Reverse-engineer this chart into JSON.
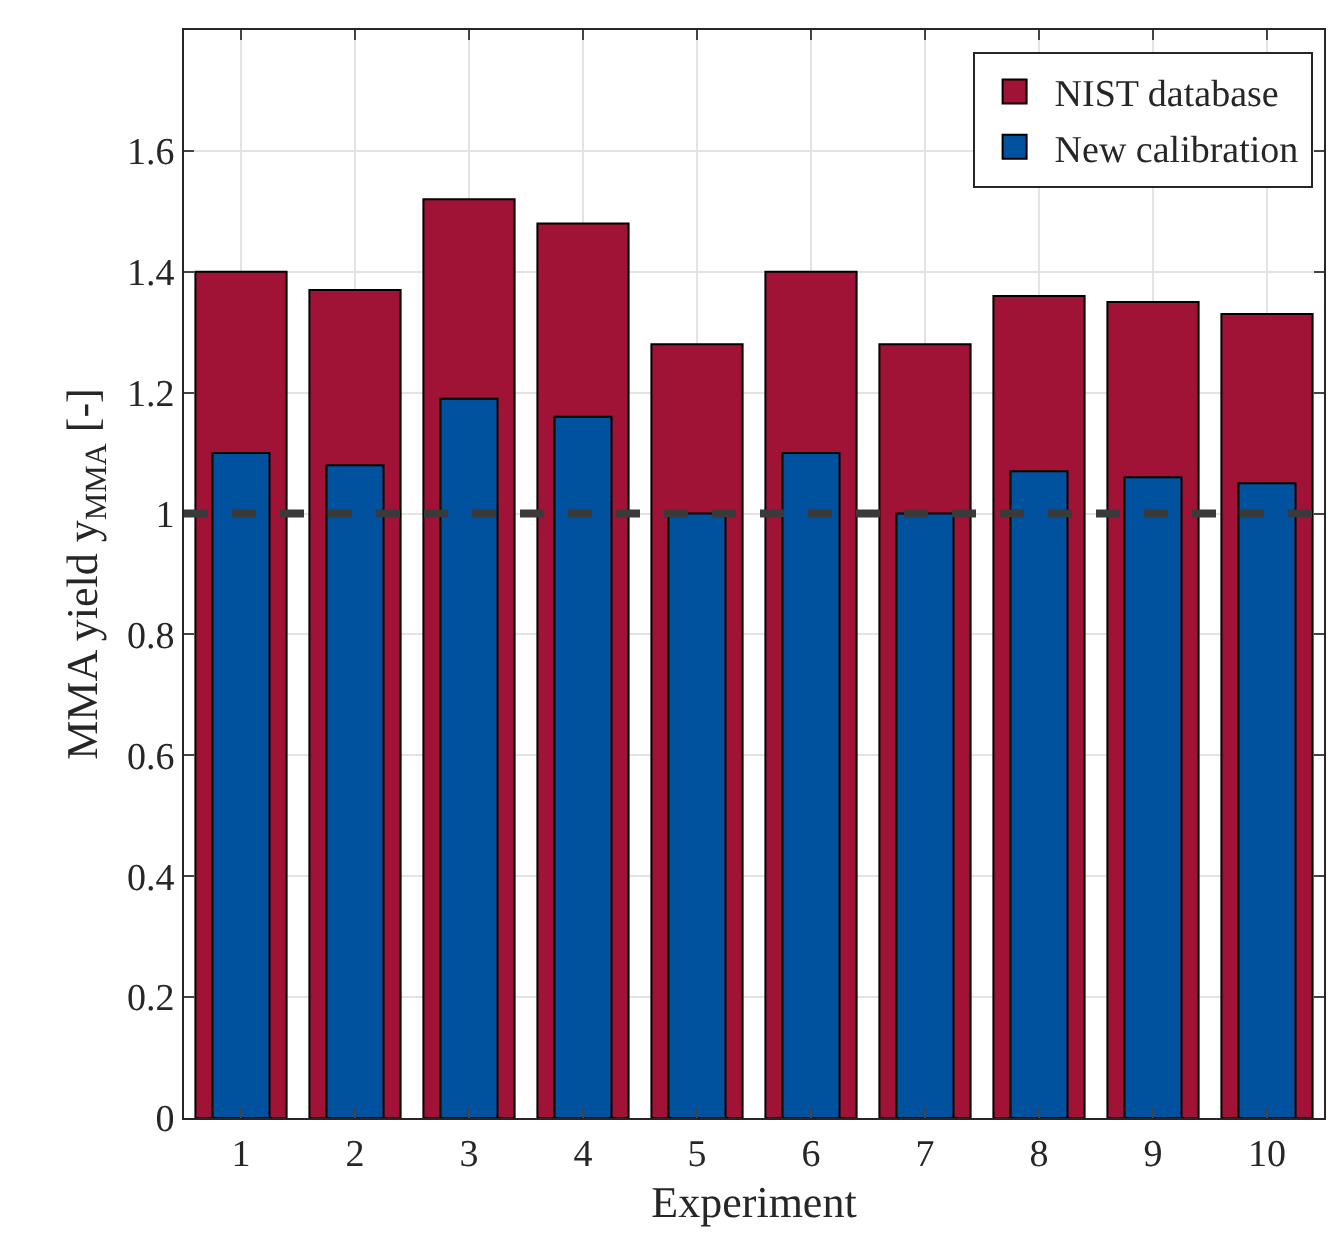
{
  "chart_data": {
    "type": "bar",
    "xlabel": "Experiment",
    "ylabel": "MMA yield y$_{MMA}$ [-]",
    "x": [
      1,
      2,
      3,
      4,
      5,
      6,
      7,
      8,
      9,
      10
    ],
    "series": [
      {
        "name": "NIST database",
        "color": "#a11237",
        "values": [
          1.4,
          1.37,
          1.52,
          1.48,
          1.28,
          1.4,
          1.28,
          1.36,
          1.35,
          1.33
        ]
      },
      {
        "name": "New calibration",
        "color": "#00529f",
        "values": [
          1.1,
          1.08,
          1.19,
          1.16,
          1.0,
          1.1,
          1.0,
          1.07,
          1.06,
          1.05
        ]
      }
    ],
    "xlim": [
      0.5,
      10.5
    ],
    "xticks": [
      1,
      2,
      3,
      4,
      5,
      6,
      7,
      8,
      9,
      10
    ],
    "ylim": [
      0,
      1.8
    ],
    "yticks": [
      0,
      0.2,
      0.4,
      0.6,
      0.8,
      1,
      1.2,
      1.4,
      1.6
    ],
    "ref_lines": [
      {
        "axis": "y",
        "value": 1,
        "color": "#3a3a3a",
        "line_style": "dashed"
      }
    ],
    "grid": true,
    "legend": "top right"
  }
}
